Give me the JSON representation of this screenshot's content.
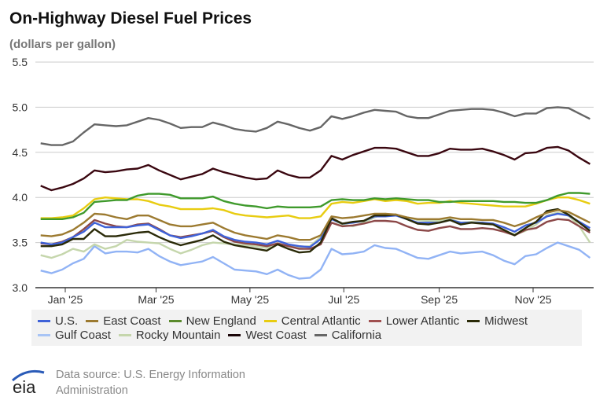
{
  "chart_data": {
    "type": "line",
    "title": "On-Highway Diesel Fuel Prices",
    "subtitle": "(dollars per gallon)",
    "ylim": [
      3.0,
      5.5
    ],
    "yticks": [
      "3.0",
      "3.5",
      "4.0",
      "4.5",
      "5.0",
      "5.5"
    ],
    "xticks": [
      {
        "label": "Jan '25",
        "date": "2025-01-01"
      },
      {
        "label": "Mar '25",
        "date": "2025-03-01"
      },
      {
        "label": "May '25",
        "date": "2025-05-01"
      },
      {
        "label": "Jul '25",
        "date": "2025-07-01"
      },
      {
        "label": "Sep '25",
        "date": "2025-09-01"
      },
      {
        "label": "Nov '25",
        "date": "2025-11-01"
      }
    ],
    "grid": "horizontal",
    "legend_placement": "bottom",
    "x": [
      "2024-12-16",
      "2024-12-23",
      "2024-12-30",
      "2025-01-06",
      "2025-01-13",
      "2025-01-20",
      "2025-01-27",
      "2025-02-03",
      "2025-02-10",
      "2025-02-17",
      "2025-02-24",
      "2025-03-03",
      "2025-03-10",
      "2025-03-17",
      "2025-03-24",
      "2025-03-31",
      "2025-04-07",
      "2025-04-14",
      "2025-04-21",
      "2025-04-28",
      "2025-05-05",
      "2025-05-12",
      "2025-05-19",
      "2025-05-26",
      "2025-06-02",
      "2025-06-09",
      "2025-06-16",
      "2025-06-23",
      "2025-06-30",
      "2025-07-07",
      "2025-07-14",
      "2025-07-21",
      "2025-07-28",
      "2025-08-04",
      "2025-08-11",
      "2025-08-18",
      "2025-08-25",
      "2025-09-01",
      "2025-09-08",
      "2025-09-15",
      "2025-09-22",
      "2025-09-29",
      "2025-10-06",
      "2025-10-13",
      "2025-10-20",
      "2025-10-27",
      "2025-11-03",
      "2025-11-10",
      "2025-11-17",
      "2025-11-24",
      "2025-12-01",
      "2025-12-08"
    ],
    "series": [
      {
        "name": "California",
        "color": "#666666",
        "values": [
          4.6,
          4.58,
          4.58,
          4.62,
          4.72,
          4.81,
          4.8,
          4.79,
          4.8,
          4.84,
          4.88,
          4.86,
          4.82,
          4.77,
          4.78,
          4.78,
          4.83,
          4.8,
          4.76,
          4.74,
          4.73,
          4.77,
          4.84,
          4.81,
          4.77,
          4.74,
          4.78,
          4.9,
          4.87,
          4.9,
          4.94,
          4.97,
          4.96,
          4.95,
          4.9,
          4.88,
          4.88,
          4.92,
          4.96,
          4.97,
          4.98,
          4.98,
          4.97,
          4.94,
          4.9,
          4.93,
          4.93,
          4.99,
          5.0,
          4.99,
          4.93,
          4.87
        ]
      },
      {
        "name": "West Coast",
        "color": "#3a0710",
        "values": [
          4.13,
          4.08,
          4.11,
          4.15,
          4.21,
          4.3,
          4.28,
          4.29,
          4.31,
          4.32,
          4.36,
          4.3,
          4.25,
          4.2,
          4.23,
          4.26,
          4.32,
          4.28,
          4.25,
          4.22,
          4.2,
          4.21,
          4.3,
          4.25,
          4.22,
          4.22,
          4.3,
          4.46,
          4.42,
          4.47,
          4.51,
          4.55,
          4.55,
          4.54,
          4.5,
          4.46,
          4.46,
          4.49,
          4.54,
          4.53,
          4.53,
          4.54,
          4.51,
          4.47,
          4.42,
          4.49,
          4.5,
          4.55,
          4.56,
          4.52,
          4.44,
          4.37
        ]
      },
      {
        "name": "Gulf Coast",
        "color": "#91b3f5",
        "values": [
          3.19,
          3.16,
          3.2,
          3.27,
          3.32,
          3.46,
          3.38,
          3.4,
          3.4,
          3.39,
          3.43,
          3.35,
          3.29,
          3.25,
          3.27,
          3.29,
          3.34,
          3.27,
          3.2,
          3.19,
          3.18,
          3.15,
          3.2,
          3.14,
          3.1,
          3.11,
          3.2,
          3.43,
          3.37,
          3.38,
          3.4,
          3.47,
          3.44,
          3.43,
          3.38,
          3.33,
          3.32,
          3.36,
          3.4,
          3.38,
          3.39,
          3.4,
          3.36,
          3.3,
          3.26,
          3.35,
          3.37,
          3.44,
          3.5,
          3.46,
          3.42,
          3.33
        ]
      },
      {
        "name": "Rocky Mountain",
        "color": "#c5d6ac",
        "values": [
          3.36,
          3.33,
          3.37,
          3.43,
          3.4,
          3.48,
          3.43,
          3.46,
          3.53,
          3.51,
          3.5,
          3.49,
          3.43,
          3.38,
          3.42,
          3.47,
          3.5,
          3.49,
          3.48,
          3.47,
          3.46,
          3.44,
          3.49,
          3.46,
          3.45,
          3.46,
          3.56,
          3.76,
          3.7,
          3.68,
          3.72,
          3.78,
          3.82,
          3.8,
          3.78,
          3.75,
          3.74,
          3.74,
          3.76,
          3.72,
          3.73,
          3.72,
          3.7,
          3.63,
          3.59,
          3.63,
          3.7,
          3.8,
          3.83,
          3.8,
          3.68,
          3.5
        ]
      },
      {
        "name": "Lower Atlantic",
        "color": "#8c4848",
        "values": [
          3.49,
          3.48,
          3.51,
          3.56,
          3.65,
          3.75,
          3.71,
          3.68,
          3.67,
          3.7,
          3.71,
          3.65,
          3.58,
          3.56,
          3.58,
          3.6,
          3.63,
          3.56,
          3.51,
          3.49,
          3.48,
          3.46,
          3.49,
          3.46,
          3.43,
          3.43,
          3.48,
          3.72,
          3.68,
          3.69,
          3.71,
          3.74,
          3.74,
          3.73,
          3.68,
          3.64,
          3.63,
          3.66,
          3.68,
          3.65,
          3.65,
          3.66,
          3.65,
          3.62,
          3.58,
          3.64,
          3.66,
          3.73,
          3.76,
          3.75,
          3.68,
          3.61
        ]
      },
      {
        "name": "U.S.",
        "color": "#3f62d8",
        "values": [
          3.5,
          3.48,
          3.5,
          3.56,
          3.62,
          3.72,
          3.67,
          3.67,
          3.67,
          3.69,
          3.7,
          3.64,
          3.58,
          3.55,
          3.57,
          3.6,
          3.64,
          3.57,
          3.53,
          3.51,
          3.5,
          3.48,
          3.52,
          3.48,
          3.46,
          3.45,
          3.54,
          3.76,
          3.71,
          3.72,
          3.74,
          3.79,
          3.79,
          3.8,
          3.76,
          3.72,
          3.72,
          3.72,
          3.75,
          3.72,
          3.72,
          3.72,
          3.71,
          3.67,
          3.62,
          3.69,
          3.72,
          3.79,
          3.82,
          3.8,
          3.73,
          3.66
        ]
      },
      {
        "name": "Midwest",
        "color": "#2a2a08",
        "values": [
          3.46,
          3.46,
          3.48,
          3.54,
          3.54,
          3.65,
          3.57,
          3.57,
          3.59,
          3.61,
          3.62,
          3.56,
          3.51,
          3.47,
          3.5,
          3.53,
          3.58,
          3.51,
          3.47,
          3.45,
          3.43,
          3.41,
          3.48,
          3.43,
          3.39,
          3.4,
          3.5,
          3.77,
          3.71,
          3.73,
          3.74,
          3.8,
          3.8,
          3.81,
          3.76,
          3.71,
          3.7,
          3.72,
          3.75,
          3.7,
          3.72,
          3.71,
          3.7,
          3.64,
          3.58,
          3.66,
          3.73,
          3.85,
          3.87,
          3.81,
          3.72,
          3.63
        ]
      },
      {
        "name": "East Coast",
        "color": "#9c7a30",
        "values": [
          3.58,
          3.57,
          3.59,
          3.64,
          3.72,
          3.82,
          3.81,
          3.78,
          3.76,
          3.8,
          3.8,
          3.75,
          3.7,
          3.68,
          3.68,
          3.7,
          3.72,
          3.66,
          3.61,
          3.58,
          3.56,
          3.54,
          3.58,
          3.56,
          3.53,
          3.53,
          3.58,
          3.79,
          3.77,
          3.78,
          3.8,
          3.82,
          3.82,
          3.81,
          3.78,
          3.76,
          3.76,
          3.76,
          3.78,
          3.76,
          3.76,
          3.75,
          3.75,
          3.72,
          3.68,
          3.72,
          3.78,
          3.83,
          3.86,
          3.84,
          3.78,
          3.72
        ]
      },
      {
        "name": "Central Atlantic",
        "color": "#e8cc10",
        "values": [
          3.77,
          3.77,
          3.78,
          3.8,
          3.88,
          3.98,
          4.0,
          3.99,
          3.98,
          3.98,
          3.96,
          3.92,
          3.9,
          3.87,
          3.87,
          3.87,
          3.88,
          3.86,
          3.82,
          3.8,
          3.79,
          3.78,
          3.79,
          3.8,
          3.77,
          3.77,
          3.79,
          3.93,
          3.95,
          3.94,
          3.96,
          3.98,
          3.96,
          3.97,
          3.96,
          3.93,
          3.94,
          3.94,
          3.96,
          3.94,
          3.93,
          3.92,
          3.91,
          3.9,
          3.9,
          3.9,
          3.93,
          3.97,
          4.0,
          4.0,
          3.97,
          3.93
        ]
      },
      {
        "name": "New England",
        "color": "#3f9a2c",
        "values": [
          3.76,
          3.76,
          3.76,
          3.78,
          3.83,
          3.95,
          3.96,
          3.97,
          3.97,
          4.02,
          4.04,
          4.04,
          4.03,
          3.99,
          3.99,
          3.99,
          4.01,
          3.96,
          3.93,
          3.91,
          3.9,
          3.88,
          3.9,
          3.89,
          3.89,
          3.89,
          3.9,
          3.97,
          3.98,
          3.97,
          3.97,
          3.99,
          3.98,
          3.99,
          3.98,
          3.97,
          3.97,
          3.95,
          3.95,
          3.96,
          3.96,
          3.96,
          3.96,
          3.95,
          3.95,
          3.94,
          3.94,
          3.97,
          4.02,
          4.05,
          4.05,
          4.04
        ]
      }
    ],
    "legend": [
      {
        "name": "U.S.",
        "color": "#3f62d8"
      },
      {
        "name": "East Coast",
        "color": "#9c7a30"
      },
      {
        "name": "New England",
        "color": "#5a8a2c"
      },
      {
        "name": "Central Atlantic",
        "color": "#e8cc10"
      },
      {
        "name": "Lower Atlantic",
        "color": "#a05050"
      },
      {
        "name": "Midwest",
        "color": "#2a2a08"
      },
      {
        "name": "Gulf Coast",
        "color": "#a8c4f5"
      },
      {
        "name": "Rocky Mountain",
        "color": "#c5d6ac"
      },
      {
        "name": "West Coast",
        "color": "#1a0508"
      },
      {
        "name": "California",
        "color": "#666666"
      }
    ]
  },
  "footer": {
    "source": "Data source: U.S. Energy Information Administration",
    "logo_text": "eia"
  }
}
